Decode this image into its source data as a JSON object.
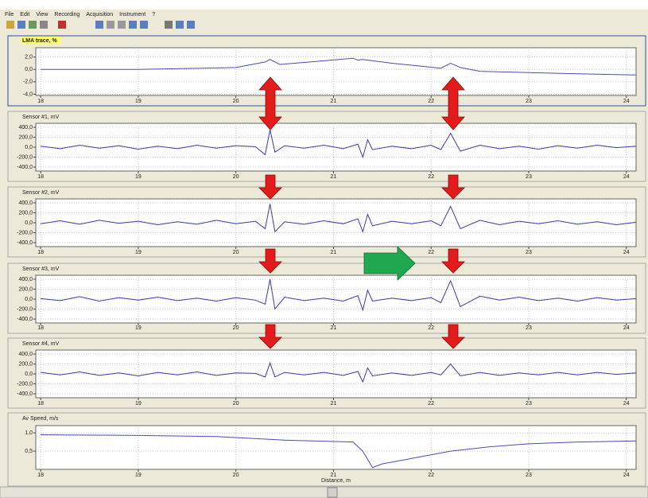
{
  "window": {
    "menu": [
      "File",
      "Edit",
      "View",
      "Recording",
      "Acquisition",
      "Instrument",
      "?"
    ]
  },
  "chart_data": [
    {
      "type": "line",
      "title": "LMA trace, %",
      "color": "#4a4ab8",
      "x": [
        18,
        19,
        20,
        20.3,
        20.35,
        20.45,
        20.6,
        21.2,
        21.25,
        21.3,
        21.6,
        22.1,
        22.2,
        22.3,
        22.5,
        23,
        23.5,
        24.1
      ],
      "values": [
        0,
        0,
        0.3,
        1.2,
        1.6,
        0.8,
        1.0,
        1.8,
        1.5,
        1.6,
        1.0,
        0.2,
        1.0,
        0.3,
        -0.3,
        -0.5,
        -0.7,
        -0.9
      ],
      "xlim": [
        17.95,
        24.1
      ],
      "ylim": [
        -4.2,
        3.5
      ],
      "xticks": [
        18,
        19,
        20,
        21,
        22,
        23,
        24
      ],
      "yticks": [
        {
          "value": 2,
          "label": "2,0"
        },
        {
          "value": 0,
          "label": "0,0"
        },
        {
          "value": -2,
          "label": "-2,0"
        },
        {
          "value": -4,
          "label": "-4,0"
        }
      ],
      "grid": true
    },
    {
      "type": "line",
      "title": "Sensor #1, mV",
      "color": "#3a3aa8",
      "x": [
        18.0,
        18.2,
        18.4,
        18.6,
        18.8,
        19.0,
        19.2,
        19.4,
        19.6,
        19.8,
        20.0,
        20.2,
        20.3,
        20.35,
        20.4,
        20.5,
        20.7,
        20.9,
        21.1,
        21.25,
        21.3,
        21.35,
        21.4,
        21.6,
        21.8,
        22.0,
        22.1,
        22.2,
        22.3,
        22.5,
        22.7,
        22.9,
        23.1,
        23.3,
        23.5,
        23.7,
        23.9,
        24.1
      ],
      "values": [
        20,
        -30,
        40,
        -20,
        30,
        -40,
        20,
        -30,
        40,
        -20,
        30,
        10,
        -150,
        350,
        -100,
        30,
        -20,
        40,
        -30,
        60,
        -200,
        150,
        -50,
        20,
        -30,
        40,
        -50,
        280,
        -80,
        40,
        -30,
        20,
        -40,
        30,
        -20,
        40,
        -10,
        20
      ],
      "xlim": [
        17.95,
        24.1
      ],
      "ylim": [
        -480,
        480
      ],
      "xticks": [
        18,
        19,
        20,
        21,
        22,
        23,
        24
      ],
      "yticks": [
        {
          "value": 400,
          "label": "400,0"
        },
        {
          "value": 200,
          "label": "200,0"
        },
        {
          "value": 0,
          "label": "0,0"
        },
        {
          "value": -200,
          "label": "-200,0"
        },
        {
          "value": -400,
          "label": "-400,0"
        }
      ],
      "grid": true
    },
    {
      "type": "line",
      "title": "Sensor #2, mV",
      "color": "#3a3aa8",
      "x": [
        18.0,
        18.2,
        18.4,
        18.6,
        18.8,
        19.0,
        19.2,
        19.4,
        19.6,
        19.8,
        20.0,
        20.2,
        20.3,
        20.35,
        20.4,
        20.5,
        20.7,
        20.9,
        21.1,
        21.25,
        21.3,
        21.35,
        21.4,
        21.6,
        21.8,
        22.0,
        22.1,
        22.2,
        22.3,
        22.5,
        22.7,
        22.9,
        23.1,
        23.3,
        23.5,
        23.7,
        23.9,
        24.1
      ],
      "values": [
        -20,
        40,
        -30,
        50,
        -10,
        30,
        -40,
        20,
        -30,
        50,
        -20,
        30,
        -120,
        380,
        -180,
        20,
        -30,
        40,
        -20,
        80,
        -180,
        170,
        -60,
        30,
        -20,
        40,
        -60,
        330,
        -120,
        50,
        -40,
        30,
        -20,
        40,
        -30,
        20,
        -40,
        10
      ],
      "xlim": [
        17.95,
        24.1
      ],
      "ylim": [
        -480,
        480
      ],
      "xticks": [
        18,
        19,
        20,
        21,
        22,
        23,
        24
      ],
      "yticks": [
        {
          "value": 400,
          "label": "400,0"
        },
        {
          "value": 200,
          "label": "200,0"
        },
        {
          "value": 0,
          "label": "0,0"
        },
        {
          "value": -200,
          "label": "-200,0"
        },
        {
          "value": -400,
          "label": "-400,0"
        }
      ],
      "grid": true
    },
    {
      "type": "line",
      "title": "Sensor #3, mV",
      "color": "#3a3aa8",
      "x": [
        18.0,
        18.2,
        18.4,
        18.6,
        18.8,
        19.0,
        19.2,
        19.4,
        19.6,
        19.8,
        20.0,
        20.2,
        20.3,
        20.35,
        20.4,
        20.5,
        20.7,
        20.9,
        21.1,
        21.25,
        21.3,
        21.35,
        21.4,
        21.6,
        21.8,
        22.0,
        22.1,
        22.2,
        22.3,
        22.5,
        22.7,
        22.9,
        23.1,
        23.3,
        23.5,
        23.7,
        23.9,
        24.1
      ],
      "values": [
        10,
        -30,
        50,
        -40,
        30,
        -20,
        40,
        -30,
        20,
        -40,
        30,
        -20,
        -100,
        400,
        -200,
        40,
        -30,
        20,
        -40,
        70,
        -220,
        180,
        -40,
        20,
        -30,
        30,
        -70,
        370,
        -150,
        60,
        -20,
        40,
        -30,
        20,
        -40,
        30,
        -20,
        10
      ],
      "xlim": [
        17.95,
        24.1
      ],
      "ylim": [
        -480,
        480
      ],
      "xticks": [
        18,
        19,
        20,
        21,
        22,
        23,
        24
      ],
      "yticks": [
        {
          "value": 400,
          "label": "400,0"
        },
        {
          "value": 200,
          "label": "200,0"
        },
        {
          "value": 0,
          "label": "0,0"
        },
        {
          "value": -200,
          "label": "-200,0"
        },
        {
          "value": -400,
          "label": "-400,0"
        }
      ],
      "grid": true
    },
    {
      "type": "line",
      "title": "Sensor #4, mV",
      "color": "#3a3aa8",
      "x": [
        18.0,
        18.2,
        18.4,
        18.6,
        18.8,
        19.0,
        19.2,
        19.4,
        19.6,
        19.8,
        20.0,
        20.2,
        20.3,
        20.35,
        20.4,
        20.5,
        20.7,
        20.9,
        21.1,
        21.25,
        21.3,
        21.35,
        21.4,
        21.6,
        21.8,
        22.0,
        22.1,
        22.2,
        22.3,
        22.5,
        22.7,
        22.9,
        23.1,
        23.3,
        23.5,
        23.7,
        23.9,
        24.1
      ],
      "values": [
        30,
        -20,
        40,
        -30,
        20,
        -40,
        30,
        -20,
        40,
        -30,
        20,
        10,
        -60,
        220,
        -60,
        30,
        -20,
        30,
        -30,
        50,
        -160,
        120,
        -40,
        20,
        -30,
        30,
        -20,
        200,
        -40,
        30,
        -30,
        20,
        -20,
        30,
        -20,
        30,
        -10,
        20
      ],
      "xlim": [
        17.95,
        24.1
      ],
      "ylim": [
        -480,
        480
      ],
      "xticks": [
        18,
        19,
        20,
        21,
        22,
        23,
        24
      ],
      "yticks": [
        {
          "value": 400,
          "label": "400,0"
        },
        {
          "value": 200,
          "label": "200,0"
        },
        {
          "value": 0,
          "label": "0,0"
        },
        {
          "value": -200,
          "label": "-200,0"
        },
        {
          "value": -400,
          "label": "-400,0"
        }
      ],
      "grid": true
    },
    {
      "type": "line",
      "title": "Av Speed, m/s",
      "xlabel": "Distance, m",
      "color": "#4a4ab8",
      "x": [
        18,
        19,
        19.8,
        20.5,
        21.2,
        21.3,
        21.4,
        21.5,
        21.8,
        22.2,
        22.6,
        23,
        23.5,
        24.1
      ],
      "values": [
        0.95,
        0.93,
        0.9,
        0.8,
        0.75,
        0.5,
        0.05,
        0.15,
        0.3,
        0.5,
        0.62,
        0.7,
        0.75,
        0.78
      ],
      "xlim": [
        17.95,
        24.1
      ],
      "ylim": [
        0,
        1.2
      ],
      "xticks": [
        18,
        19,
        20,
        21,
        22,
        23,
        24
      ],
      "yticks": [
        {
          "value": 1,
          "label": "1,0"
        },
        {
          "value": 0.5,
          "label": "0,5"
        }
      ],
      "grid": true
    }
  ]
}
